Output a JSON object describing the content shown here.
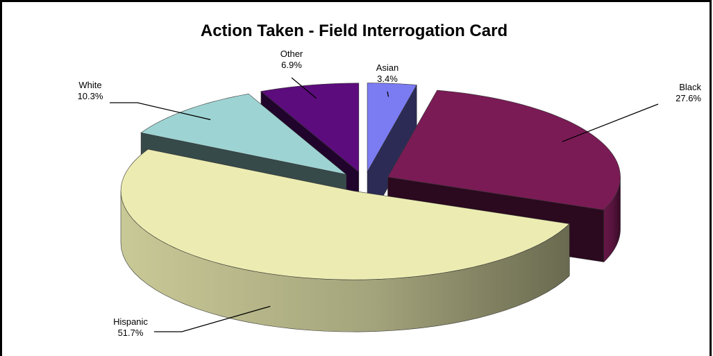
{
  "chart_data": {
    "type": "pie3d",
    "title": "Action Taken - Field Interrogation Card",
    "categories": [
      "Asian",
      "Black",
      "Hispanic",
      "White",
      "Other"
    ],
    "values": [
      3.4,
      27.6,
      51.7,
      10.3,
      6.9
    ],
    "value_labels": [
      "3.4%",
      "27.6%",
      "51.7%",
      "10.3%",
      "6.9%"
    ],
    "colors": [
      "#7b7bf2",
      "#7a1b55",
      "#ececb2",
      "#9ed3d3",
      "#5c0c7c"
    ]
  }
}
